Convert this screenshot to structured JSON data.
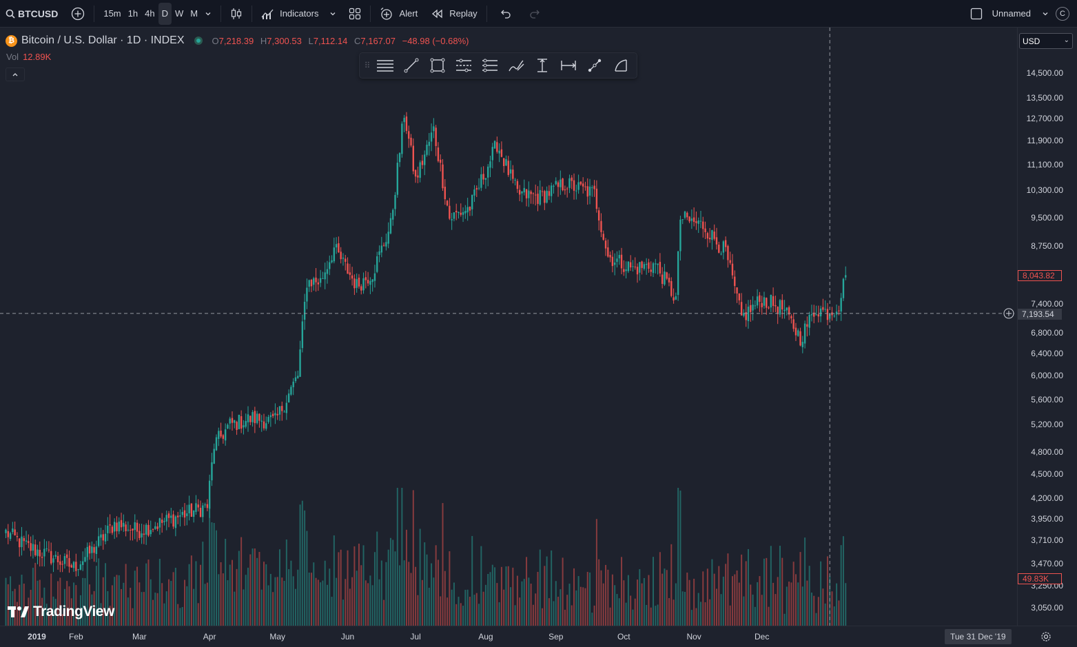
{
  "topbar": {
    "symbol": "BTCUSD",
    "intervals": [
      "15m",
      "1h",
      "4h",
      "D",
      "W",
      "M"
    ],
    "active_interval": "D",
    "indicators_label": "Indicators",
    "alert_label": "Alert",
    "replay_label": "Replay",
    "layout_name": "Unnamed",
    "profile_initial": "C"
  },
  "legend": {
    "logo_letter": "₿",
    "title": "Bitcoin / U.S. Dollar · 1D · INDEX",
    "o_label": "O",
    "o": "7,218.39",
    "h_label": "H",
    "h": "7,300.53",
    "l_label": "L",
    "l": "7,112.14",
    "c_label": "C",
    "c": "7,167.07",
    "change": "−48.98 (−0.68%)"
  },
  "volume_legend": {
    "label": "Vol",
    "value": "12.89K"
  },
  "currency": "USD",
  "logo_text": "TradingView",
  "drawing_tools": [
    "horizontal-lines-icon",
    "trend-line-icon",
    "rectangle-icon",
    "parallel-channel-icon",
    "pitchfork-icon",
    "brush-icon",
    "price-range-icon",
    "date-range-icon",
    "ruler-icon",
    "curve-icon"
  ],
  "colors": {
    "up": "#26a69a",
    "down": "#ef5350",
    "background": "#1e222d",
    "grid": "#2a2e39"
  },
  "tags": {
    "last_price": "8,043.82",
    "crosshair_price": "7,193.54",
    "last_volume": "49.83K",
    "crosshair_date": "Tue 31 Dec '19"
  },
  "chart_data": {
    "type": "candlestick",
    "symbol": "BTCUSD",
    "interval": "1D",
    "scale": "log",
    "price_ticks": [
      "14,500.00",
      "13,500.00",
      "12,700.00",
      "11,900.00",
      "11,100.00",
      "10,300.00",
      "9,500.00",
      "8,750.00",
      "7,400.00",
      "6,800.00",
      "6,400.00",
      "6,000.00",
      "5,600.00",
      "5,200.00",
      "4,800.00",
      "4,500.00",
      "4,200.00",
      "3,950.00",
      "3,710.00",
      "3,470.00",
      "3,250.00",
      "3,050.00"
    ],
    "time_ticks": [
      "2019",
      "Feb",
      "Mar",
      "Apr",
      "May",
      "Jun",
      "Jul",
      "Aug",
      "Sep",
      "Oct",
      "Nov",
      "Dec"
    ],
    "last_price": 8043.82,
    "crosshair_price": 7193.54,
    "crosshair_date": "2019-12-31",
    "daily_close_anchors": [
      [
        "2019-01-01",
        3800
      ],
      [
        "2019-01-10",
        3650
      ],
      [
        "2019-01-20",
        3550
      ],
      [
        "2019-01-31",
        3430
      ],
      [
        "2019-02-08",
        3600
      ],
      [
        "2019-02-18",
        3900
      ],
      [
        "2019-02-28",
        3820
      ],
      [
        "2019-03-10",
        3900
      ],
      [
        "2019-03-20",
        4000
      ],
      [
        "2019-03-31",
        4100
      ],
      [
        "2019-04-03",
        4900
      ],
      [
        "2019-04-10",
        5200
      ],
      [
        "2019-04-20",
        5300
      ],
      [
        "2019-04-30",
        5250
      ],
      [
        "2019-05-10",
        6000
      ],
      [
        "2019-05-14",
        7900
      ],
      [
        "2019-05-20",
        7900
      ],
      [
        "2019-05-26",
        8700
      ],
      [
        "2019-06-05",
        7800
      ],
      [
        "2019-06-12",
        8100
      ],
      [
        "2019-06-20",
        9300
      ],
      [
        "2019-06-26",
        12900
      ],
      [
        "2019-07-01",
        10600
      ],
      [
        "2019-07-09",
        12300
      ],
      [
        "2019-07-16",
        9500
      ],
      [
        "2019-07-25",
        9800
      ],
      [
        "2019-08-06",
        11800
      ],
      [
        "2019-08-15",
        10200
      ],
      [
        "2019-08-25",
        10100
      ],
      [
        "2019-09-05",
        10500
      ],
      [
        "2019-09-18",
        10200
      ],
      [
        "2019-09-24",
        8500
      ],
      [
        "2019-10-05",
        8200
      ],
      [
        "2019-10-15",
        8300
      ],
      [
        "2019-10-24",
        7500
      ],
      [
        "2019-10-26",
        9500
      ],
      [
        "2019-11-05",
        9300
      ],
      [
        "2019-11-15",
        8600
      ],
      [
        "2019-11-22",
        7100
      ],
      [
        "2019-12-01",
        7500
      ],
      [
        "2019-12-10",
        7300
      ],
      [
        "2019-12-18",
        6700
      ],
      [
        "2019-12-25",
        7300
      ],
      [
        "2019-12-31",
        7193
      ],
      [
        "2020-01-04",
        7400
      ],
      [
        "2020-01-07",
        8043
      ]
    ]
  }
}
